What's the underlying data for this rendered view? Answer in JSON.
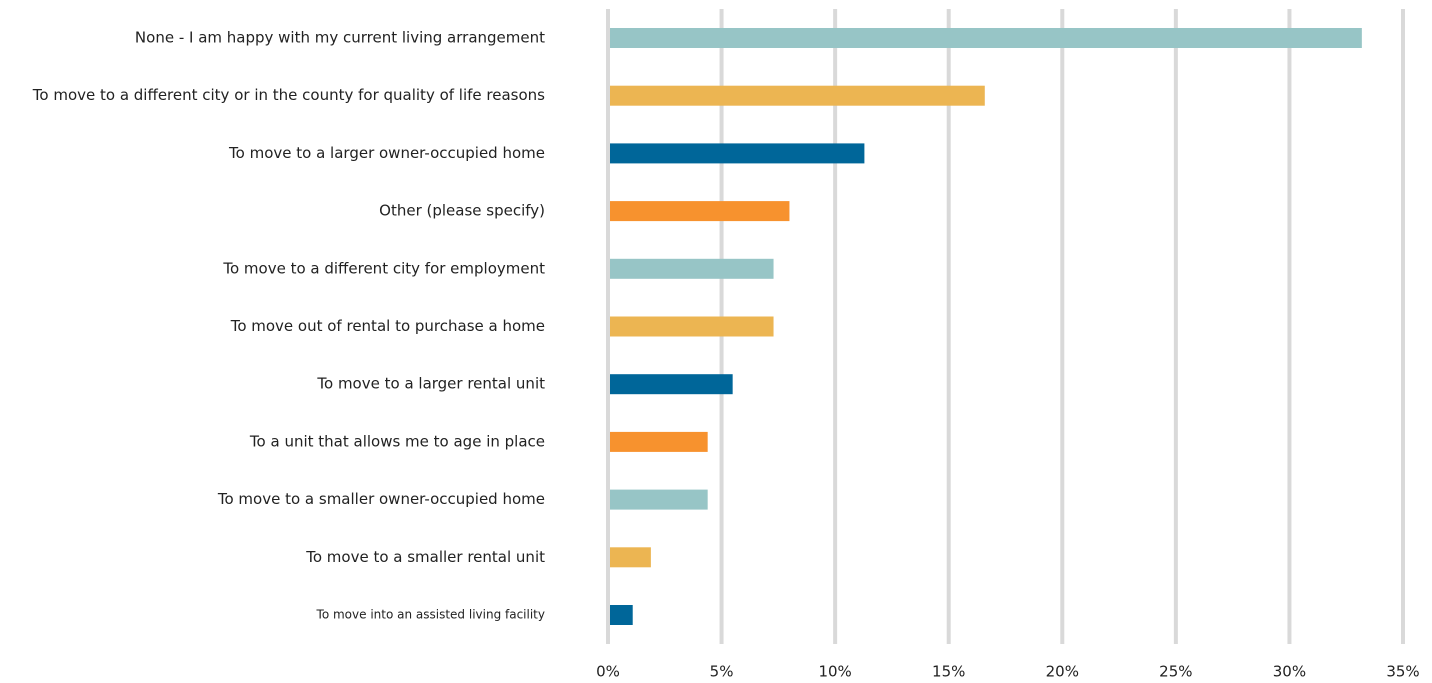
{
  "chart_data": {
    "type": "bar",
    "orientation": "horizontal",
    "categories": [
      "None - I am happy with my current living arrangement",
      "To move to a different city or in the county for quality of life reasons",
      "To move to a larger owner-occupied home",
      "Other (please specify)",
      "To move to a different city for employment",
      "To move out of rental to purchase a home",
      "To move to a larger rental unit",
      "To a unit that allows me to age in place",
      "To move to a smaller owner-occupied home",
      "To move to a smaller rental unit",
      "To move into an assisted living facility"
    ],
    "values": [
      33.1,
      16.5,
      11.2,
      7.9,
      7.2,
      7.2,
      5.4,
      4.3,
      4.3,
      1.8,
      1.0
    ],
    "colors": [
      "#97c5c6",
      "#ecb552",
      "#006699",
      "#f7922e",
      "#97c5c6",
      "#ecb552",
      "#006699",
      "#f7922e",
      "#97c5c6",
      "#ecb552",
      "#006699"
    ],
    "xlim": [
      0,
      35
    ],
    "xticks": [
      {
        "value": 0,
        "label": "0%"
      },
      {
        "value": 5,
        "label": "5%"
      },
      {
        "value": 10,
        "label": "10%"
      },
      {
        "value": 15,
        "label": "15%"
      },
      {
        "value": 20,
        "label": "20%"
      },
      {
        "value": 25,
        "label": "25%"
      },
      {
        "value": 30,
        "label": "30%"
      },
      {
        "value": 35,
        "label": "35%"
      }
    ],
    "grid": true
  }
}
